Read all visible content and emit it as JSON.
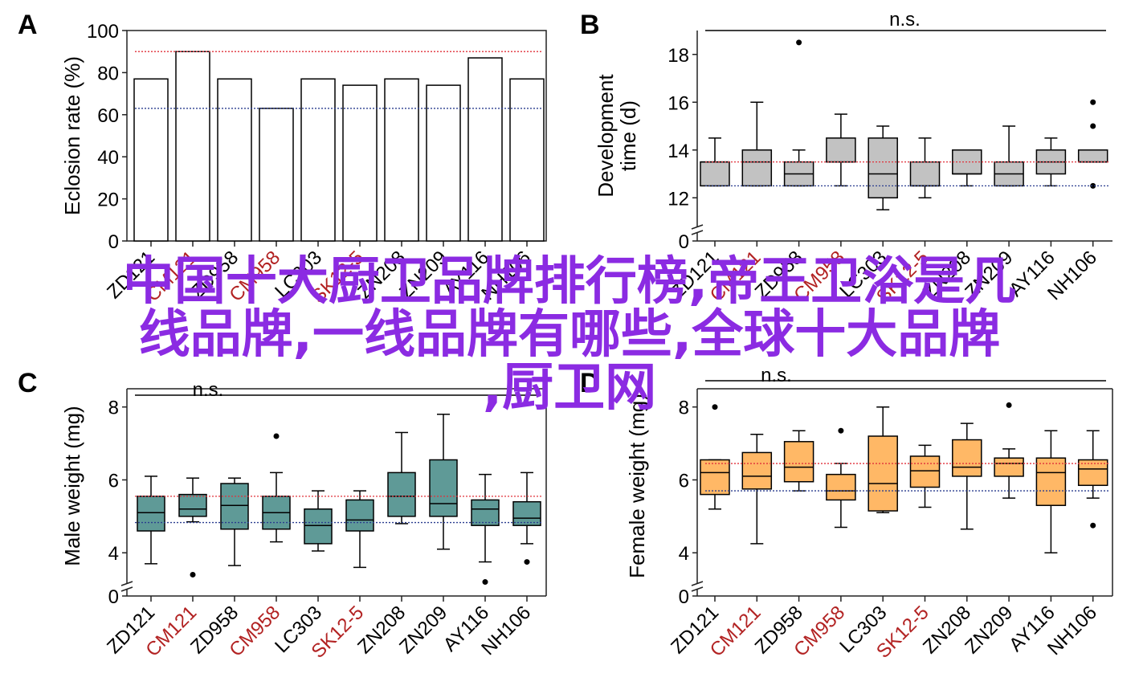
{
  "panels": [
    {
      "letter": "A"
    },
    {
      "letter": "B"
    },
    {
      "letter": "C"
    },
    {
      "letter": "D"
    }
  ],
  "categories": [
    "ZD121",
    "CM121",
    "ZD958",
    "CM958",
    "LC303",
    "SK12-5",
    "ZN208",
    "ZN209",
    "AY116",
    "NH106"
  ],
  "highlight_categories": [
    "CM121",
    "CM958",
    "SK12-5"
  ],
  "colors": {
    "highlight_label": "#b22222",
    "ref_line_red": "#e0303a",
    "ref_line_blue": "#2a3d8f",
    "box_gray": "#c2c2c2",
    "box_teal": "#5f9a97",
    "box_orange": "#ffb866",
    "bar_fill": "#ffffff",
    "watermark": "#8b2be2"
  },
  "chart_data": [
    {
      "type": "bar",
      "panel": "A",
      "ylabel": "Eclosion rate (%)",
      "ylim": [
        0,
        100
      ],
      "yticks": [
        0,
        20,
        40,
        60,
        80,
        100
      ],
      "values": [
        77,
        90,
        77,
        63,
        77,
        74,
        77,
        74,
        87,
        77
      ],
      "ref_red": 90,
      "ref_blue": 63
    },
    {
      "type": "box",
      "panel": "B",
      "ylabel": [
        "Development",
        "time (d)"
      ],
      "ylim": [
        11,
        19
      ],
      "yticks": [
        12,
        14,
        16,
        18
      ],
      "axis_break": true,
      "zero_label": "0",
      "annotation": "n.s.",
      "ref_red": 13.5,
      "ref_blue": 12.5,
      "boxes": [
        {
          "min": 12.5,
          "q1": 12.5,
          "med": 13.5,
          "q3": 13.5,
          "max": 14.5,
          "out": []
        },
        {
          "min": 12.5,
          "q1": 12.5,
          "med": 13.5,
          "q3": 14.0,
          "max": 16.0,
          "out": []
        },
        {
          "min": 12.5,
          "q1": 12.5,
          "med": 13.0,
          "q3": 13.5,
          "max": 14.0,
          "out": [
            18.5
          ]
        },
        {
          "min": 12.5,
          "q1": 13.5,
          "med": 13.5,
          "q3": 14.5,
          "max": 15.5,
          "out": []
        },
        {
          "min": 11.5,
          "q1": 12.0,
          "med": 13.0,
          "q3": 14.5,
          "max": 15.0,
          "out": []
        },
        {
          "min": 12.0,
          "q1": 12.5,
          "med": 12.5,
          "q3": 13.5,
          "max": 14.5,
          "out": []
        },
        {
          "min": 12.5,
          "q1": 13.0,
          "med": 13.0,
          "q3": 14.0,
          "max": 14.0,
          "out": []
        },
        {
          "min": 12.5,
          "q1": 12.5,
          "med": 13.0,
          "q3": 13.5,
          "max": 15.0,
          "out": []
        },
        {
          "min": 12.5,
          "q1": 13.0,
          "med": 13.5,
          "q3": 14.0,
          "max": 14.5,
          "out": []
        },
        {
          "min": 13.5,
          "q1": 13.5,
          "med": 13.5,
          "q3": 14.0,
          "max": 14.0,
          "out": [
            16.0,
            15.0,
            12.5
          ]
        }
      ]
    },
    {
      "type": "box",
      "panel": "C",
      "ylabel": "Male weight (mg)",
      "ylim": [
        3.3,
        8.5
      ],
      "yticks": [
        4,
        6,
        8
      ],
      "axis_break": true,
      "zero_label": "0",
      "annotation": "n.s.",
      "ref_red": 5.55,
      "ref_blue": 4.83,
      "boxes": [
        {
          "min": 3.7,
          "q1": 4.6,
          "med": 5.1,
          "q3": 5.55,
          "max": 6.1,
          "out": []
        },
        {
          "min": 4.85,
          "q1": 5.0,
          "med": 5.2,
          "q3": 5.6,
          "max": 6.05,
          "out": [
            3.4
          ]
        },
        {
          "min": 3.65,
          "q1": 4.65,
          "med": 5.3,
          "q3": 5.9,
          "max": 6.05,
          "out": []
        },
        {
          "min": 4.3,
          "q1": 4.65,
          "med": 5.1,
          "q3": 5.55,
          "max": 6.2,
          "out": [
            7.2
          ]
        },
        {
          "min": 4.05,
          "q1": 4.25,
          "med": 4.75,
          "q3": 5.2,
          "max": 5.7,
          "out": []
        },
        {
          "min": 3.6,
          "q1": 4.6,
          "med": 4.9,
          "q3": 5.45,
          "max": 5.7,
          "out": []
        },
        {
          "min": 4.8,
          "q1": 5.0,
          "med": 5.55,
          "q3": 6.2,
          "max": 7.3,
          "out": []
        },
        {
          "min": 4.1,
          "q1": 5.0,
          "med": 5.35,
          "q3": 6.55,
          "max": 7.8,
          "out": []
        },
        {
          "min": 3.75,
          "q1": 4.75,
          "med": 5.2,
          "q3": 5.45,
          "max": 6.15,
          "out": [
            3.2
          ]
        },
        {
          "min": 4.25,
          "q1": 4.75,
          "med": 4.95,
          "q3": 5.4,
          "max": 6.2,
          "out": [
            3.75
          ]
        }
      ]
    },
    {
      "type": "box",
      "panel": "D",
      "ylabel": "Female weight (mg)",
      "ylim": [
        3.3,
        8.5
      ],
      "yticks": [
        4,
        6,
        8
      ],
      "axis_break": true,
      "zero_label": "0",
      "annotation": "n.s.",
      "ref_red": 6.45,
      "ref_blue": 5.7,
      "boxes": [
        {
          "min": 5.2,
          "q1": 5.6,
          "med": 6.2,
          "q3": 6.55,
          "max": 6.55,
          "out": [
            8.0
          ]
        },
        {
          "min": 4.25,
          "q1": 5.75,
          "med": 6.1,
          "q3": 6.75,
          "max": 7.25,
          "out": []
        },
        {
          "min": 5.7,
          "q1": 5.95,
          "med": 6.35,
          "q3": 7.05,
          "max": 7.35,
          "out": []
        },
        {
          "min": 4.7,
          "q1": 5.45,
          "med": 5.7,
          "q3": 6.15,
          "max": 6.45,
          "out": [
            7.35
          ]
        },
        {
          "min": 5.1,
          "q1": 5.15,
          "med": 5.9,
          "q3": 7.2,
          "max": 8.0,
          "out": []
        },
        {
          "min": 5.25,
          "q1": 5.8,
          "med": 6.25,
          "q3": 6.65,
          "max": 6.95,
          "out": []
        },
        {
          "min": 4.65,
          "q1": 6.1,
          "med": 6.35,
          "q3": 7.1,
          "max": 7.55,
          "out": []
        },
        {
          "min": 5.5,
          "q1": 6.1,
          "med": 6.45,
          "q3": 6.6,
          "max": 6.85,
          "out": [
            8.05
          ]
        },
        {
          "min": 4.0,
          "q1": 5.3,
          "med": 6.2,
          "q3": 6.6,
          "max": 7.35,
          "out": []
        },
        {
          "min": 5.5,
          "q1": 5.85,
          "med": 6.3,
          "q3": 6.55,
          "max": 7.35,
          "out": [
            4.75
          ]
        }
      ]
    }
  ],
  "watermark": {
    "line1": "中国十大厨卫品牌排行榜,帝王卫浴是几",
    "line2": "线品牌,一线品牌有哪些,全球十大品牌",
    "line3": ",厨卫网"
  }
}
